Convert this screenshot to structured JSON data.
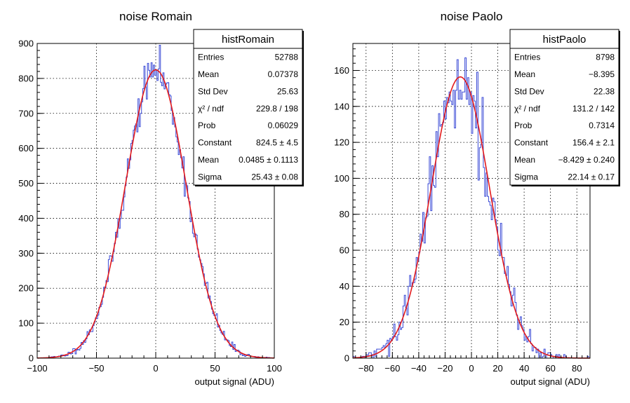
{
  "chart_data": [
    {
      "type": "histogram",
      "title": "noise Romain",
      "xlabel": "output signal (ADU)",
      "ylabel": "",
      "xlim": [
        -100,
        100
      ],
      "ylim": [
        0,
        900
      ],
      "xticks": [
        -100,
        -50,
        0,
        50,
        100
      ],
      "yticks": [
        0,
        100,
        200,
        300,
        400,
        500,
        600,
        700,
        800,
        900
      ],
      "grid": true,
      "series": [
        {
          "name": "histogram",
          "color": "#3b4bd6"
        },
        {
          "name": "gaussian fit",
          "color": "#e31a1c"
        }
      ],
      "fit": {
        "constant": 824.5,
        "mean": 0.0485,
        "sigma": 25.43
      },
      "hist": {
        "bin_width": 1,
        "noise_seed": 11
      },
      "stats_box": {
        "title": "histRomain",
        "rows": [
          {
            "label": "Entries",
            "value": "52788"
          },
          {
            "label": "Mean",
            "value": "0.07378"
          },
          {
            "label": "Std Dev",
            "value": "25.63"
          },
          {
            "label": "χ² / ndf",
            "value": "229.8 / 198"
          },
          {
            "label": "Prob",
            "value": "0.06029"
          },
          {
            "label": "Constant",
            "value": "824.5 ± 4.5"
          },
          {
            "label": "Mean",
            "value": "0.0485 ± 0.1113"
          },
          {
            "label": "Sigma",
            "value": "25.43 ± 0.08"
          }
        ]
      }
    },
    {
      "type": "histogram",
      "title": "noise Paolo",
      "xlabel": "output signal (ADU)",
      "ylabel": "",
      "xlim": [
        -90,
        90
      ],
      "ylim": [
        0,
        175
      ],
      "xticks": [
        -80,
        -60,
        -40,
        -20,
        0,
        20,
        40,
        60,
        80
      ],
      "yticks": [
        0,
        20,
        40,
        60,
        80,
        100,
        120,
        140,
        160
      ],
      "grid": true,
      "series": [
        {
          "name": "histogram",
          "color": "#3b4bd6"
        },
        {
          "name": "gaussian fit",
          "color": "#e31a1c"
        }
      ],
      "fit": {
        "constant": 156.4,
        "mean": -8.429,
        "sigma": 22.14
      },
      "hist": {
        "bin_width": 1,
        "noise_seed": 29
      },
      "stats_box": {
        "title": "histPaolo",
        "rows": [
          {
            "label": "Entries",
            "value": "8798"
          },
          {
            "label": "Mean",
            "value": "−8.395"
          },
          {
            "label": "Std Dev",
            "value": "22.38"
          },
          {
            "label": "χ² / ndf",
            "value": "131.2 / 142"
          },
          {
            "label": "Prob",
            "value": "0.7314"
          },
          {
            "label": "Constant",
            "value": "156.4 ± 2.1"
          },
          {
            "label": "Mean",
            "value": "−8.429 ± 0.240"
          },
          {
            "label": "Sigma",
            "value": "22.14 ± 0.17"
          }
        ]
      }
    }
  ]
}
